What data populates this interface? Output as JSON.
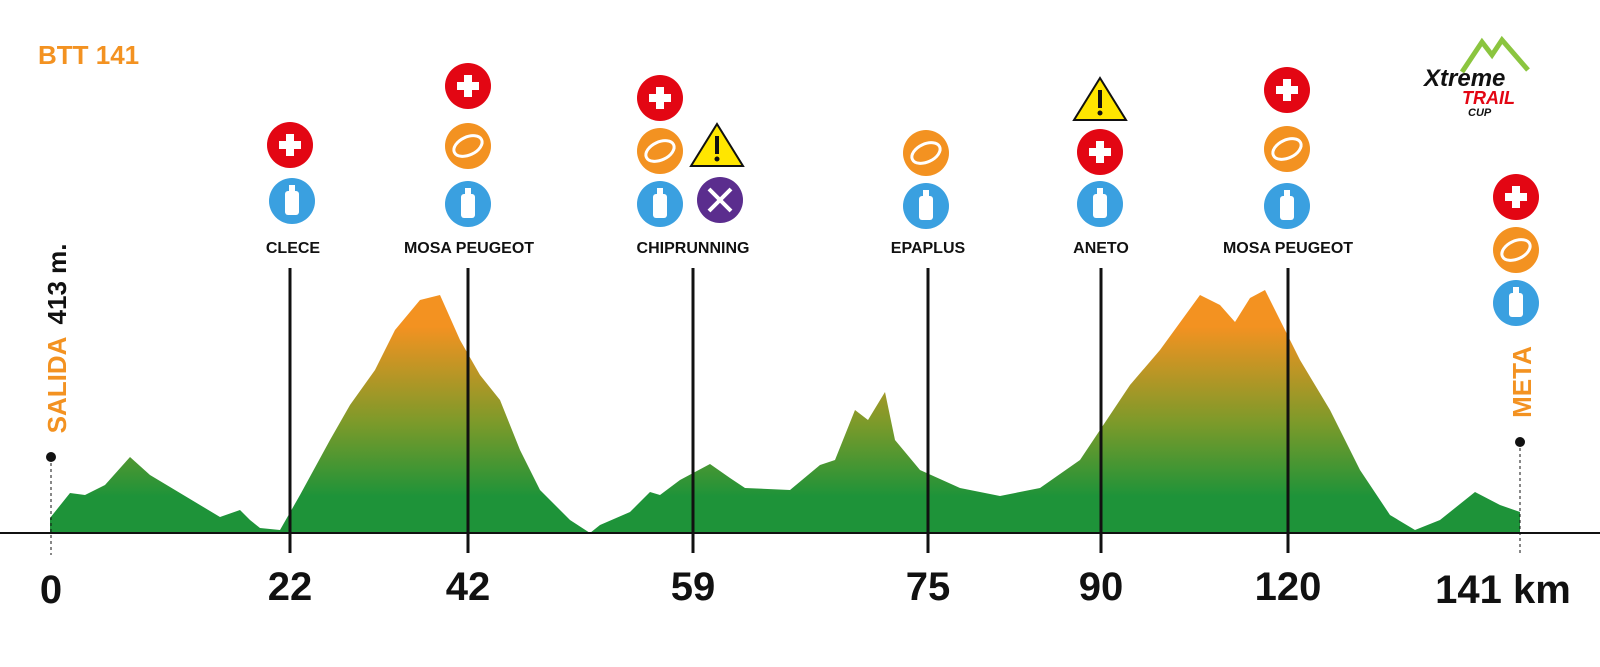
{
  "title": "BTT 141",
  "logo": {
    "line1": "Xtreme",
    "line2": "TRAIL",
    "line3": "CUP"
  },
  "elevation": "413 m.",
  "start": "SALIDA",
  "finish": "META",
  "km_start": "0",
  "km_finish": "141 km",
  "checkpoints": [
    {
      "name": "CLECE",
      "km": "22"
    },
    {
      "name": "MOSA PEUGEOT",
      "km": "42"
    },
    {
      "name": "CHIPRUNNING",
      "km": "59"
    },
    {
      "name": "EPAPLUS",
      "km": "75"
    },
    {
      "name": "ANETO",
      "km": "90"
    },
    {
      "name": "MOSA PEUGEOT",
      "km": "120"
    }
  ]
}
